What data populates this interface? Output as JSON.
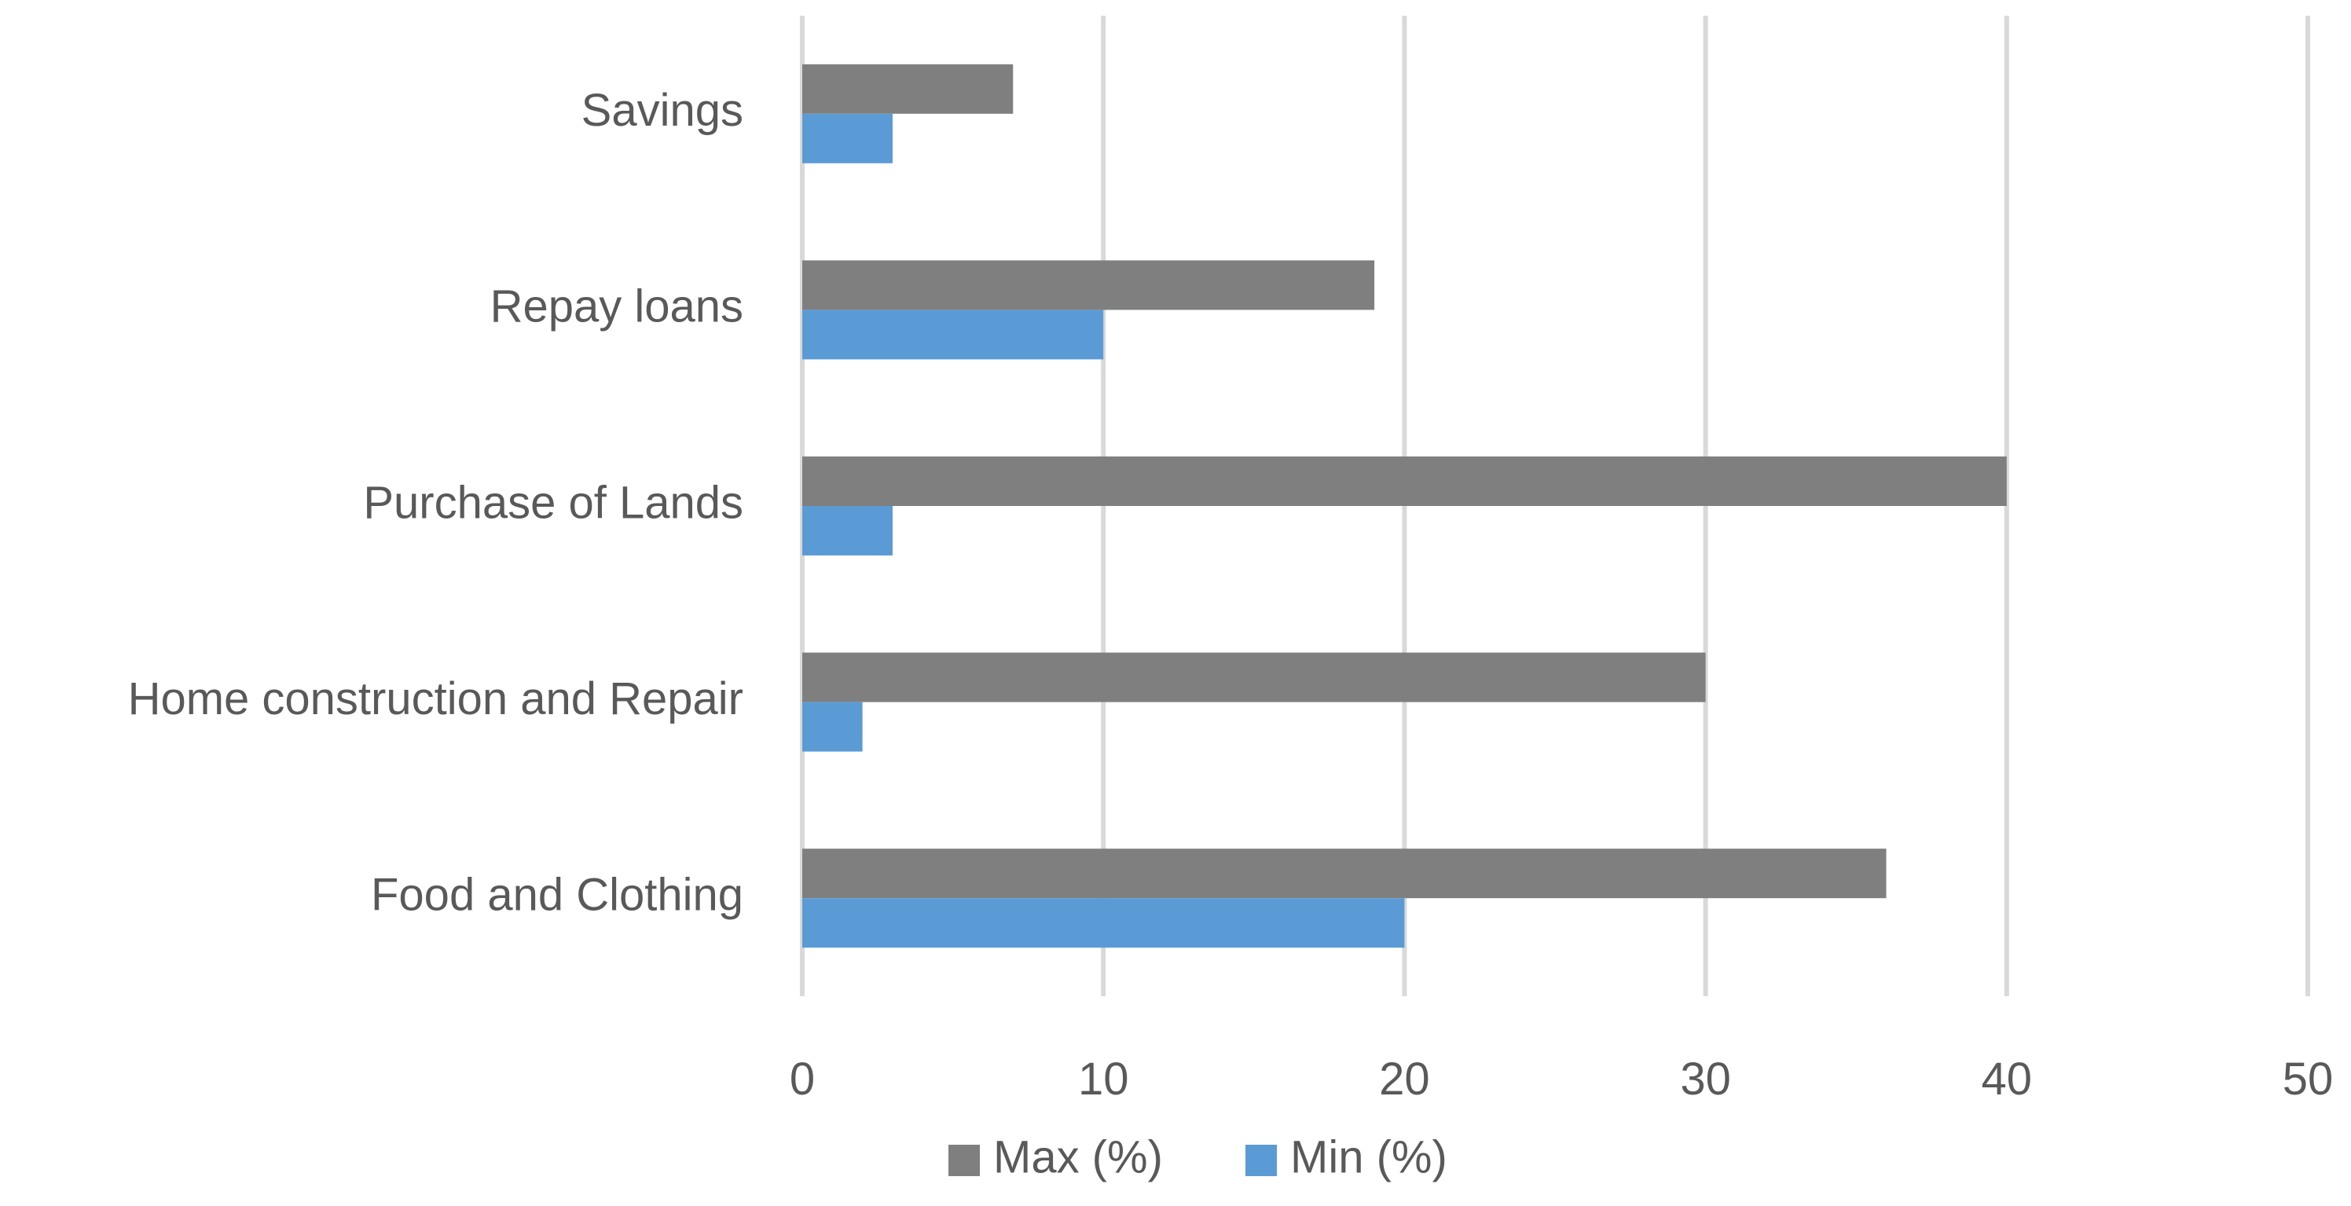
{
  "chart_data": {
    "type": "bar",
    "orientation": "horizontal",
    "categories": [
      "Savings",
      "Repay loans",
      "Purchase of Lands",
      "Home construction and Repair",
      "Food and Clothing"
    ],
    "series": [
      {
        "name": "Max (%)",
        "color": "#7f7f7f",
        "values": [
          7,
          19,
          40,
          30,
          36
        ]
      },
      {
        "name": "Min (%)",
        "color": "#5b9bd5",
        "values": [
          3,
          10,
          3,
          2,
          20
        ]
      }
    ],
    "xlim": [
      0,
      50
    ],
    "xticks": [
      "0",
      "10",
      "20",
      "30",
      "40",
      "50"
    ],
    "grid": "vertical",
    "legend_position": "bottom"
  }
}
